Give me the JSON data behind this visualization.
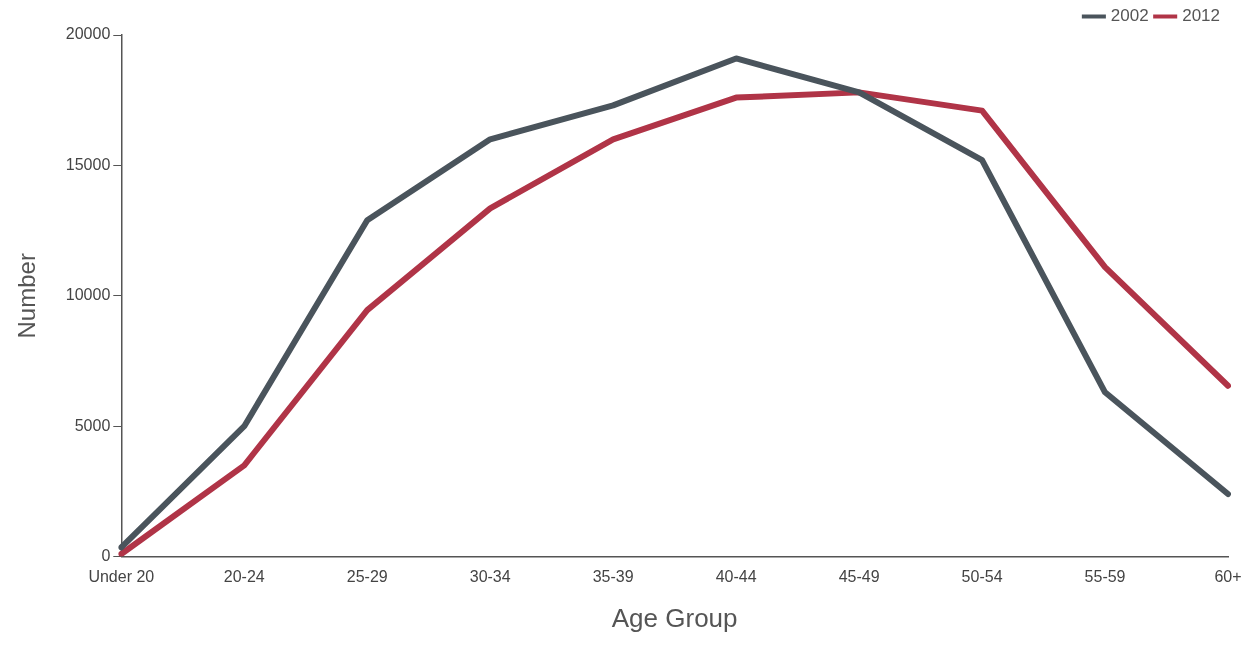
{
  "chart_data": {
    "type": "line",
    "xlabel": "Age Group",
    "ylabel": "Number",
    "categories": [
      "Under 20",
      "20-24",
      "25-29",
      "30-34",
      "35-39",
      "40-44",
      "45-49",
      "50-54",
      "55-59",
      "60+"
    ],
    "series": [
      {
        "name": "2002",
        "color": "#4a545c",
        "values": [
          350,
          5000,
          12900,
          16000,
          17300,
          19100,
          17800,
          15200,
          6300,
          2400
        ]
      },
      {
        "name": "2012",
        "color": "#b03447",
        "values": [
          100,
          3500,
          9450,
          13350,
          16000,
          17600,
          17800,
          17100,
          11100,
          6550
        ]
      }
    ],
    "ylim": [
      0,
      20000
    ],
    "yticks": [
      0,
      5000,
      10000,
      15000,
      20000
    ],
    "grid": false,
    "legend": "top right",
    "marker": "none",
    "line_style": "solid"
  }
}
